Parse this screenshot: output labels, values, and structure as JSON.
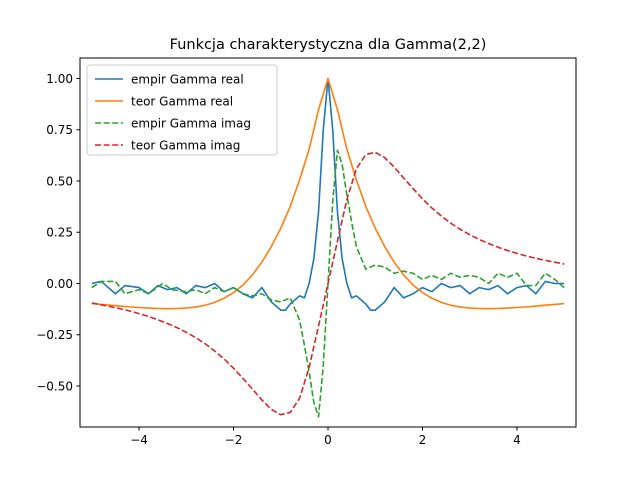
{
  "chart_data": {
    "type": "line",
    "title": "Funkcja charakterystyczna dla Gamma(2,2)",
    "xlabel": "",
    "ylabel": "",
    "xlim": [
      -5.25,
      5.25
    ],
    "ylim": [
      -0.7,
      1.1
    ],
    "xticks": [
      -4,
      -2,
      0,
      2,
      4
    ],
    "xtick_labels": [
      "−4",
      "−2",
      "0",
      "2",
      "4"
    ],
    "yticks": [
      -0.5,
      -0.25,
      0.0,
      0.25,
      0.5,
      0.75,
      1.0
    ],
    "ytick_labels": [
      "−0.50",
      "−0.25",
      "0.00",
      "0.25",
      "0.50",
      "0.75",
      "1.00"
    ],
    "grid": false,
    "legend_position": "top-left",
    "series": [
      {
        "name": "empir Gamma real",
        "color": "#1f77b4",
        "style": "solid",
        "x": [
          -5.0,
          -4.8,
          -4.5,
          -4.3,
          -4.0,
          -3.8,
          -3.6,
          -3.4,
          -3.2,
          -3.0,
          -2.8,
          -2.6,
          -2.4,
          -2.2,
          -2.0,
          -1.8,
          -1.6,
          -1.4,
          -1.2,
          -1.0,
          -0.9,
          -0.8,
          -0.6,
          -0.5,
          -0.4,
          -0.3,
          -0.2,
          -0.1,
          0.0,
          0.1,
          0.2,
          0.3,
          0.4,
          0.5,
          0.6,
          0.8,
          0.9,
          1.0,
          1.2,
          1.4,
          1.6,
          1.8,
          2.0,
          2.2,
          2.4,
          2.6,
          2.8,
          3.0,
          3.2,
          3.4,
          3.6,
          3.8,
          4.0,
          4.2,
          4.4,
          4.6,
          4.8,
          5.0
        ],
        "y": [
          0.0,
          0.01,
          -0.05,
          -0.01,
          -0.02,
          -0.05,
          -0.01,
          -0.03,
          -0.02,
          -0.05,
          -0.01,
          -0.02,
          -0.0,
          -0.04,
          -0.02,
          -0.05,
          -0.07,
          -0.02,
          -0.09,
          -0.13,
          -0.13,
          -0.1,
          -0.06,
          -0.07,
          0.0,
          0.12,
          0.35,
          0.75,
          1.0,
          0.75,
          0.35,
          0.12,
          0.0,
          -0.07,
          -0.06,
          -0.1,
          -0.13,
          -0.13,
          -0.09,
          -0.02,
          -0.07,
          -0.05,
          -0.02,
          -0.04,
          -0.0,
          -0.02,
          -0.01,
          -0.05,
          -0.02,
          -0.03,
          -0.01,
          -0.05,
          -0.02,
          -0.01,
          -0.05,
          0.01,
          0.0,
          0.0
        ]
      },
      {
        "name": "teor Gamma real",
        "color": "#ff7f0e",
        "style": "solid",
        "x": [
          -5.0,
          -4.8,
          -4.6,
          -4.4,
          -4.2,
          -4.0,
          -3.8,
          -3.6,
          -3.4,
          -3.2,
          -3.0,
          -2.8,
          -2.6,
          -2.4,
          -2.2,
          -2.0,
          -1.8,
          -1.6,
          -1.4,
          -1.2,
          -1.0,
          -0.8,
          -0.6,
          -0.4,
          -0.2,
          0.0,
          0.2,
          0.4,
          0.6,
          0.8,
          1.0,
          1.2,
          1.4,
          1.6,
          1.8,
          2.0,
          2.2,
          2.4,
          2.6,
          2.8,
          3.0,
          3.2,
          3.4,
          3.6,
          3.8,
          4.0,
          4.2,
          4.4,
          4.6,
          4.8,
          5.0
        ],
        "y": [
          -0.098,
          -0.102,
          -0.106,
          -0.11,
          -0.114,
          -0.117,
          -0.12,
          -0.122,
          -0.123,
          -0.122,
          -0.12,
          -0.115,
          -0.106,
          -0.092,
          -0.072,
          -0.044,
          -0.007,
          0.042,
          0.104,
          0.18,
          0.269,
          0.376,
          0.506,
          0.655,
          0.848,
          1.0,
          0.848,
          0.655,
          0.506,
          0.376,
          0.269,
          0.18,
          0.104,
          0.042,
          -0.007,
          -0.044,
          -0.072,
          -0.092,
          -0.106,
          -0.115,
          -0.12,
          -0.122,
          -0.123,
          -0.122,
          -0.12,
          -0.117,
          -0.114,
          -0.11,
          -0.106,
          -0.102,
          -0.098
        ]
      },
      {
        "name": "empir Gamma imag",
        "color": "#2ca02c",
        "style": "dashed",
        "x": [
          -5.0,
          -4.8,
          -4.5,
          -4.3,
          -4.0,
          -3.8,
          -3.5,
          -3.3,
          -3.0,
          -2.8,
          -2.6,
          -2.4,
          -2.2,
          -2.0,
          -1.8,
          -1.6,
          -1.4,
          -1.2,
          -1.0,
          -0.8,
          -0.6,
          -0.5,
          -0.4,
          -0.3,
          -0.2,
          -0.1,
          0.0,
          0.1,
          0.2,
          0.3,
          0.4,
          0.5,
          0.6,
          0.8,
          1.0,
          1.2,
          1.4,
          1.6,
          1.8,
          2.0,
          2.2,
          2.4,
          2.6,
          2.8,
          3.0,
          3.2,
          3.4,
          3.6,
          3.8,
          4.0,
          4.2,
          4.4,
          4.6,
          4.8,
          5.0
        ],
        "y": [
          -0.02,
          0.01,
          0.01,
          -0.05,
          -0.03,
          -0.05,
          0.0,
          -0.03,
          -0.04,
          -0.03,
          -0.05,
          -0.02,
          -0.04,
          -0.02,
          -0.05,
          -0.06,
          -0.05,
          -0.08,
          -0.09,
          -0.07,
          -0.18,
          -0.3,
          -0.43,
          -0.58,
          -0.65,
          -0.4,
          0.0,
          0.4,
          0.65,
          0.58,
          0.43,
          0.3,
          0.18,
          0.07,
          0.09,
          0.08,
          0.05,
          0.06,
          0.05,
          0.02,
          0.04,
          0.02,
          0.05,
          0.03,
          0.04,
          0.03,
          0.0,
          0.05,
          0.03,
          0.05,
          -0.01,
          -0.01,
          0.05,
          0.02,
          -0.02
        ]
      },
      {
        "name": "teor Gamma imag",
        "color": "#d62728",
        "style": "dashed",
        "x": [
          -5.0,
          -4.8,
          -4.6,
          -4.4,
          -4.2,
          -4.0,
          -3.8,
          -3.6,
          -3.4,
          -3.2,
          -3.0,
          -2.8,
          -2.6,
          -2.4,
          -2.2,
          -2.0,
          -1.8,
          -1.6,
          -1.4,
          -1.2,
          -1.0,
          -0.8,
          -0.6,
          -0.4,
          -0.2,
          0.0,
          0.2,
          0.4,
          0.6,
          0.8,
          1.0,
          1.2,
          1.4,
          1.6,
          1.8,
          2.0,
          2.2,
          2.4,
          2.6,
          2.8,
          3.0,
          3.2,
          3.4,
          3.6,
          3.8,
          4.0,
          4.2,
          4.4,
          4.6,
          4.8,
          5.0
        ],
        "y": [
          -0.095,
          -0.104,
          -0.113,
          -0.123,
          -0.134,
          -0.147,
          -0.161,
          -0.177,
          -0.195,
          -0.215,
          -0.238,
          -0.264,
          -0.294,
          -0.329,
          -0.368,
          -0.413,
          -0.463,
          -0.515,
          -0.568,
          -0.614,
          -0.64,
          -0.629,
          -0.559,
          -0.41,
          -0.207,
          0.0,
          0.207,
          0.41,
          0.559,
          0.629,
          0.64,
          0.614,
          0.568,
          0.515,
          0.463,
          0.413,
          0.368,
          0.329,
          0.294,
          0.264,
          0.238,
          0.215,
          0.195,
          0.177,
          0.161,
          0.147,
          0.134,
          0.123,
          0.113,
          0.104,
          0.095
        ]
      }
    ]
  }
}
